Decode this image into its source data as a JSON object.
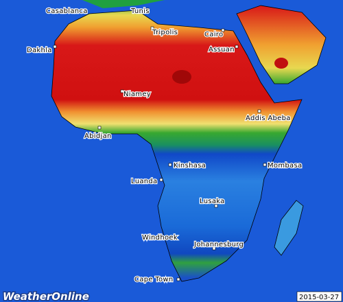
{
  "cities": [
    "Casablanca",
    "Tunis",
    "Tripolis",
    "Cairo",
    "Assuan",
    "Dakhla",
    "Niamey",
    "Addis Abeba",
    "Abidjan",
    "Kinshasa",
    "Mombasa",
    "Luanda",
    "Lusaka",
    "Windhoek",
    "Johannesburg",
    "Cape Town"
  ],
  "logo": "WeatherOnline",
  "date": "2015-03-27"
}
